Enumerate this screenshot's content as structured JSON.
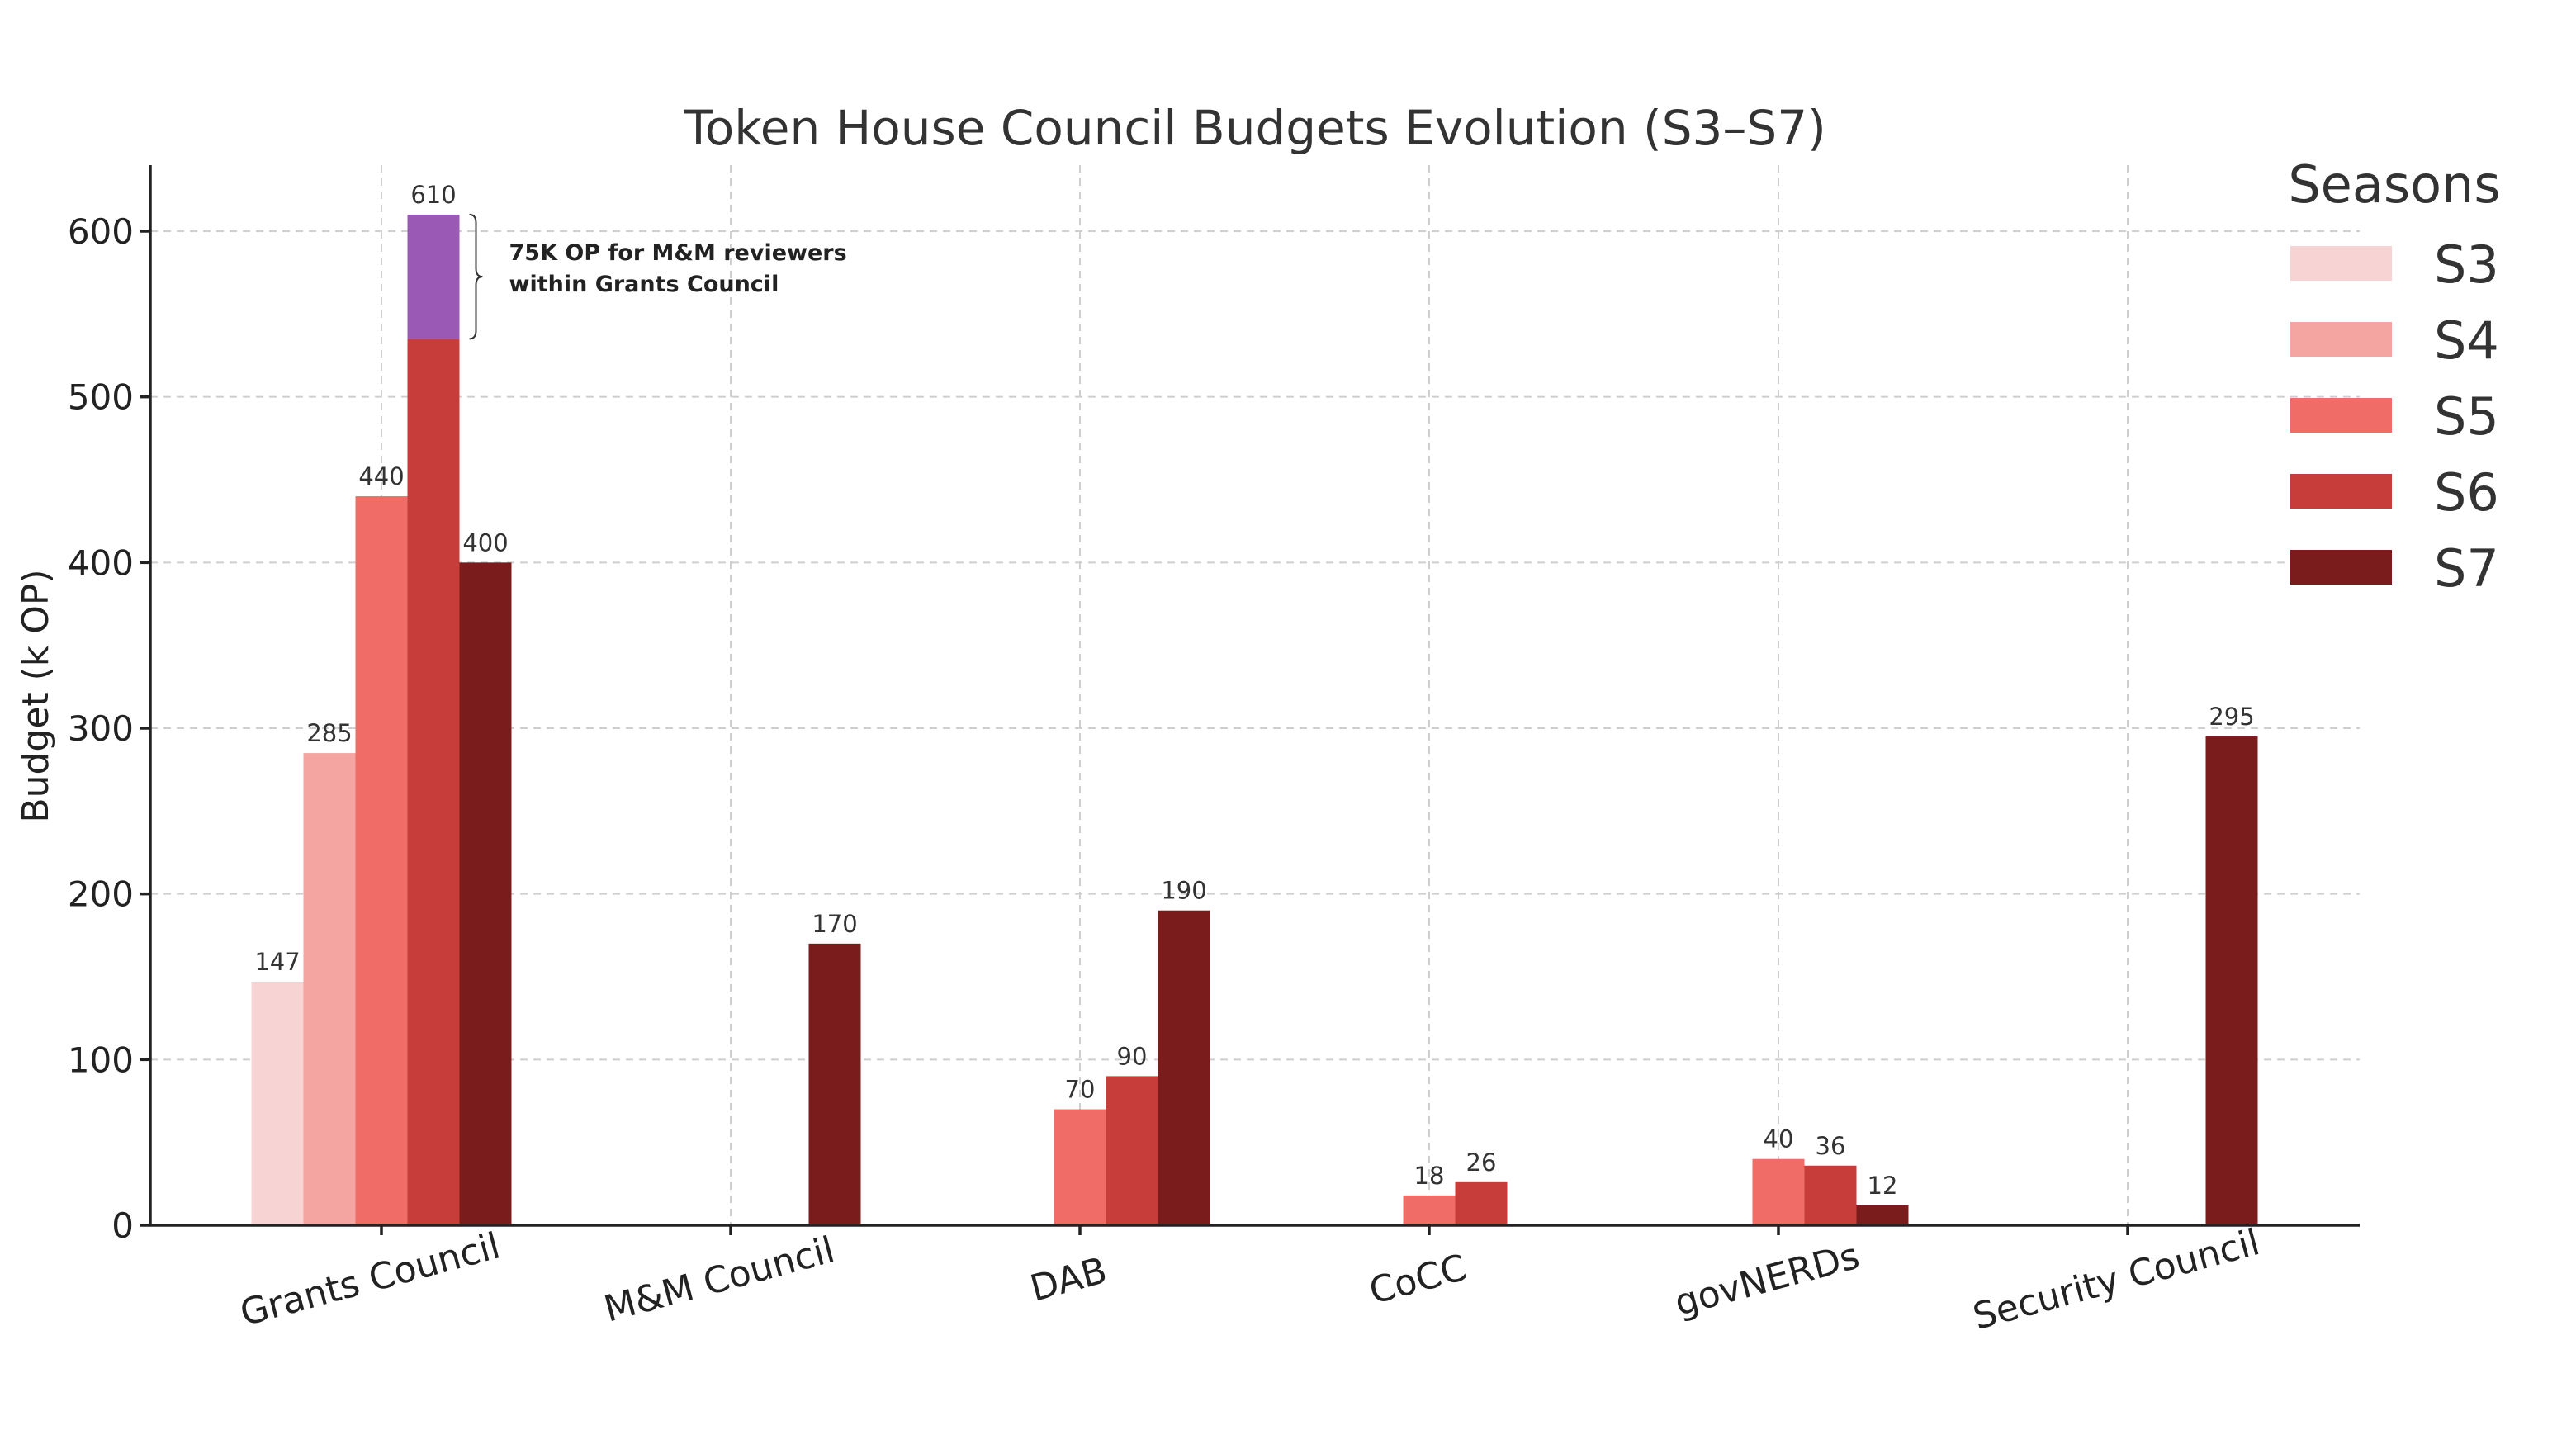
{
  "chart_data": {
    "type": "bar",
    "title": "Token House Council Budgets Evolution (S3–S7)",
    "xlabel": "",
    "ylabel": "Budget (k OP)",
    "ylim": [
      0,
      640
    ],
    "yticks": [
      0,
      100,
      200,
      300,
      400,
      500,
      600
    ],
    "grid": true,
    "legend": {
      "title": "Seasons",
      "placement": "top-right"
    },
    "categories": [
      "Grants Council",
      "M&M Council",
      "DAB",
      "CoCC",
      "govNERDs",
      "Security Council"
    ],
    "series": [
      {
        "name": "S3",
        "color": "#f8d3d3",
        "values": [
          147,
          null,
          null,
          null,
          null,
          null
        ]
      },
      {
        "name": "S4",
        "color": "#f4a4a1",
        "values": [
          285,
          null,
          null,
          null,
          null,
          null
        ]
      },
      {
        "name": "S5",
        "color": "#ef6c67",
        "values": [
          440,
          null,
          70,
          18,
          40,
          null
        ]
      },
      {
        "name": "S6",
        "color": "#c63d3a",
        "values": [
          610,
          null,
          90,
          26,
          36,
          null
        ]
      },
      {
        "name": "S7",
        "color": "#7a1c1c",
        "values": [
          400,
          170,
          190,
          null,
          12,
          295
        ]
      }
    ],
    "stacked_segment": {
      "category": "Grants Council",
      "series": "S6",
      "base": 535,
      "top": 610,
      "color": "#9b59b6",
      "annotation": [
        "75K OP for M&M reviewers",
        "within Grants Council"
      ]
    }
  }
}
